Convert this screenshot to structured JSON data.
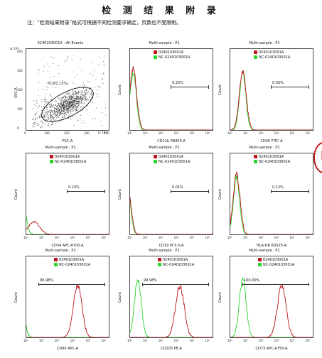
{
  "title": "检 测 结 果 附 录",
  "note": "注：“检测结果附录”格式可根据不同检测要求确定，页数也不受限制。",
  "colors": {
    "sample": "#c0151b",
    "control": "#2bd42b",
    "dots": "#1a1a1a"
  },
  "scatter": {
    "title": "0240103001A : All Events",
    "gate_label": "P1(81.13%)",
    "xlabel": "FSC-A",
    "ylabel": "SSC-A",
    "x_exp": "(x 10⁴)",
    "y_exp": "(x 10⁴)",
    "x_ticks": [
      "0",
      "100",
      "200",
      "300",
      "400"
    ],
    "y_ticks": [
      "0",
      "100",
      "200",
      "300",
      "400"
    ]
  },
  "histograms": [
    {
      "title": "Multi-sample : P1",
      "xlabel": "CD11b PB450-A",
      "pct": "0.25%",
      "sample_peak": 1.2,
      "control_peak": 1.2,
      "shape": "normal"
    },
    {
      "title": "Multi-sample : P1",
      "xlabel": "CD45 FITC-A",
      "pct": "0.02%",
      "sample_peak": 1.8,
      "control_peak": 1.8,
      "shape": "normal"
    },
    {
      "title": "Multi-sample : P1",
      "xlabel": "CD34 APC-A700-A",
      "pct": "0.10%",
      "sample_peak": 1.5,
      "control_peak": 0.6,
      "shape": "low"
    },
    {
      "title": "Multi-sample : P1",
      "xlabel": "CD19 PC5.5-A",
      "pct": "0.01%",
      "sample_peak": 0.8,
      "control_peak": 0.8,
      "shape": "normal"
    },
    {
      "title": "Multi-sample : P1",
      "xlabel": "HLA-DR KO525-A",
      "pct": "0.12%",
      "sample_peak": 1.4,
      "control_peak": 1.4,
      "shape": "normal"
    },
    {
      "title": "Multi-sample : P1",
      "xlabel": "CD90 APC-A",
      "pct": "99.98%",
      "sample_peak": 4.3,
      "control_peak": 0.6,
      "shape": "shift"
    },
    {
      "title": "Multi-sample : P1",
      "xlabel": "CD105 PE-A",
      "pct": "99.98%",
      "sample_peak": 4.2,
      "control_peak": 1.5,
      "shape": "shift"
    },
    {
      "title": "Multi-sample : P1",
      "xlabel": "CD73 APC-A750-A",
      "pct": "100.00%",
      "sample_peak": 4.3,
      "control_peak": 1.8,
      "shape": "shift"
    }
  ],
  "legend": {
    "sample": "0240103001A",
    "control": "NC-0240103001A"
  },
  "hist_ylabel": "Count",
  "log_ticks": [
    "10¹",
    "10²",
    "10³",
    "10⁴",
    "10⁵",
    "10⁶"
  ]
}
